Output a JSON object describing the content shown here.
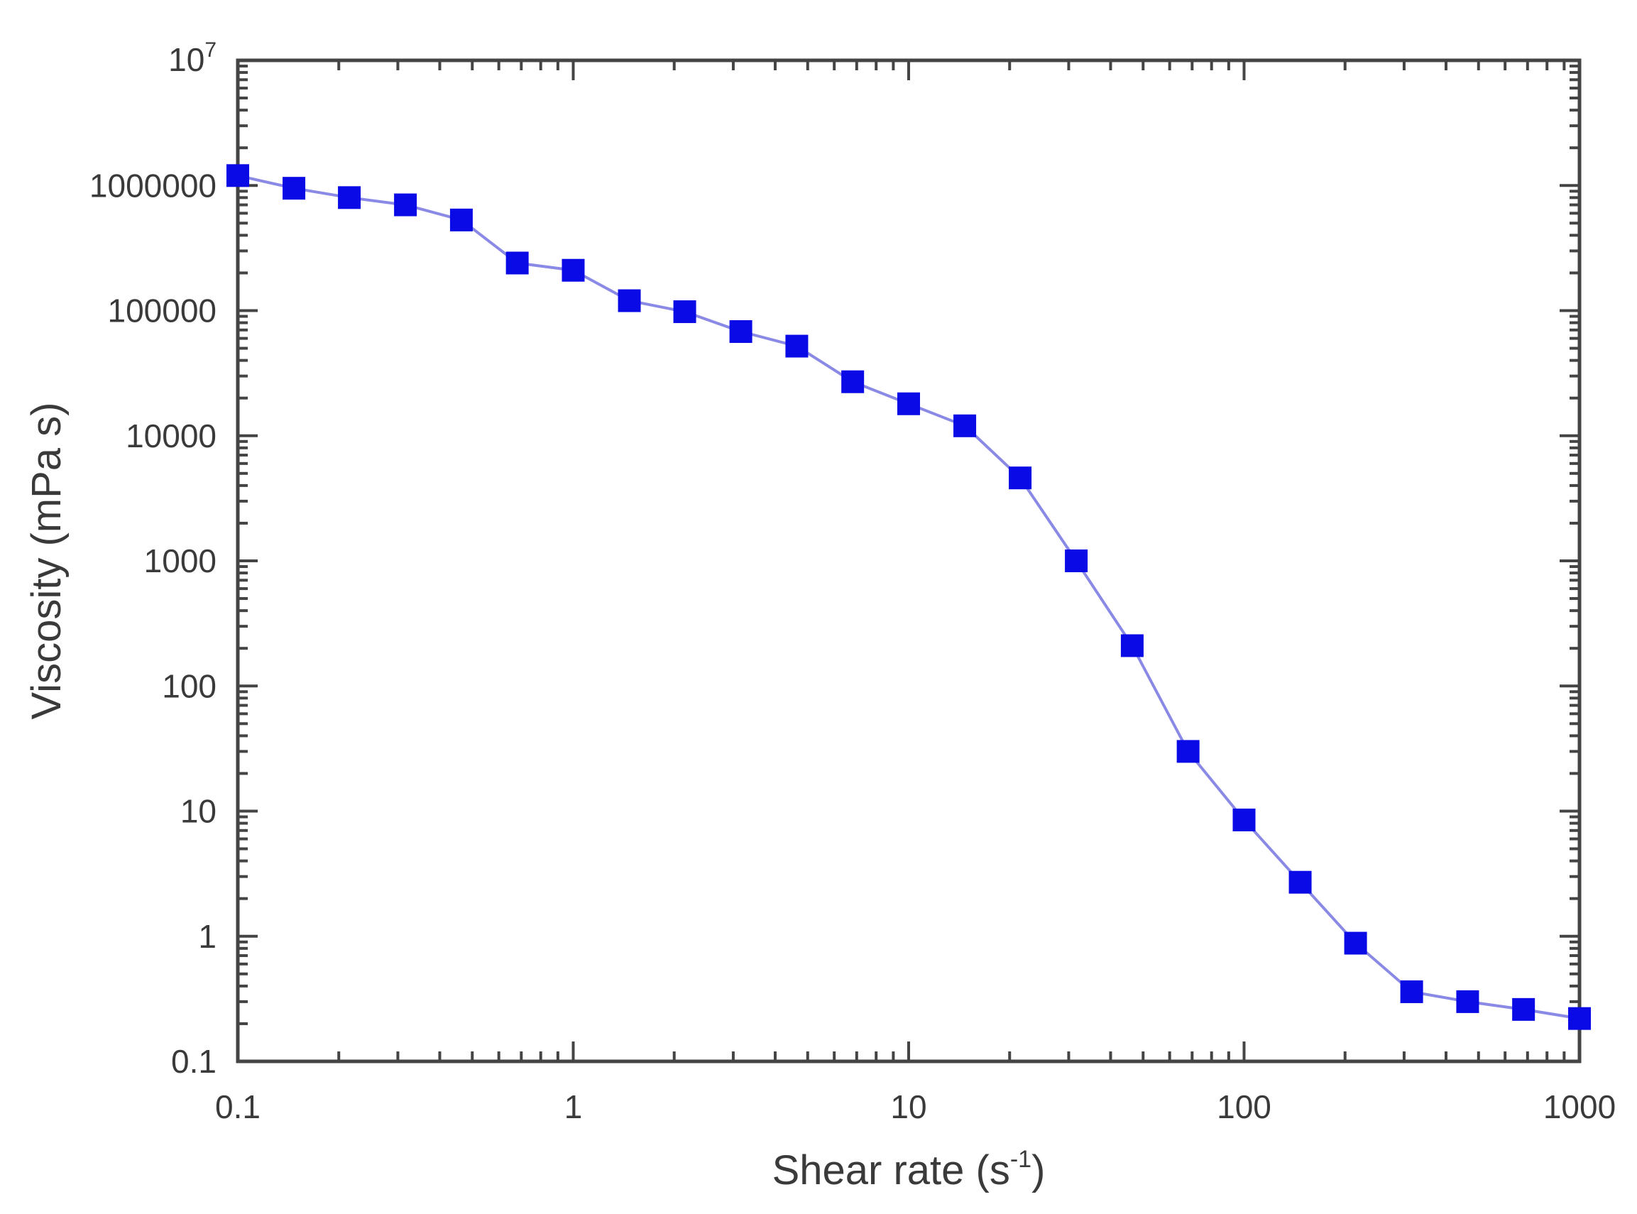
{
  "chart_data": {
    "type": "line",
    "title": "",
    "xlabel": "Shear rate (s",
    "xlabel_sup": "-1",
    "xlabel_close": ")",
    "ylabel": "Viscosity (mPa s)",
    "xscale": "log",
    "yscale": "log",
    "xlim": [
      0.1,
      1000
    ],
    "ylim": [
      0.1,
      10000000
    ],
    "x_tick_labels": [
      "0.1",
      "1",
      "10",
      "100",
      "1000"
    ],
    "y_tick_labels": [
      "0.1",
      "1",
      "10",
      "100",
      "1000",
      "10000",
      "100000",
      "1000000"
    ],
    "y_top_label_base": "10",
    "y_top_label_exp": "7",
    "grid": false,
    "legend": "none",
    "colors": {
      "line": "#8a8ae6",
      "marker": "#0a0ae6"
    },
    "series": [
      {
        "x": [
          0.1,
          0.147,
          0.215,
          0.316,
          0.464,
          0.681,
          1,
          1.47,
          2.15,
          3.16,
          4.64,
          6.81,
          10,
          14.7,
          21.5,
          31.6,
          46.4,
          68.1,
          100,
          147,
          215,
          316,
          464,
          681,
          1000
        ],
        "y": [
          1200000,
          950000,
          800000,
          700000,
          530000,
          240000,
          210000,
          120000,
          98000,
          68000,
          52000,
          27000,
          18000,
          12000,
          4600,
          1000,
          210,
          30,
          8.5,
          2.7,
          0.88,
          0.36,
          0.3,
          0.26,
          0.22
        ]
      }
    ]
  }
}
